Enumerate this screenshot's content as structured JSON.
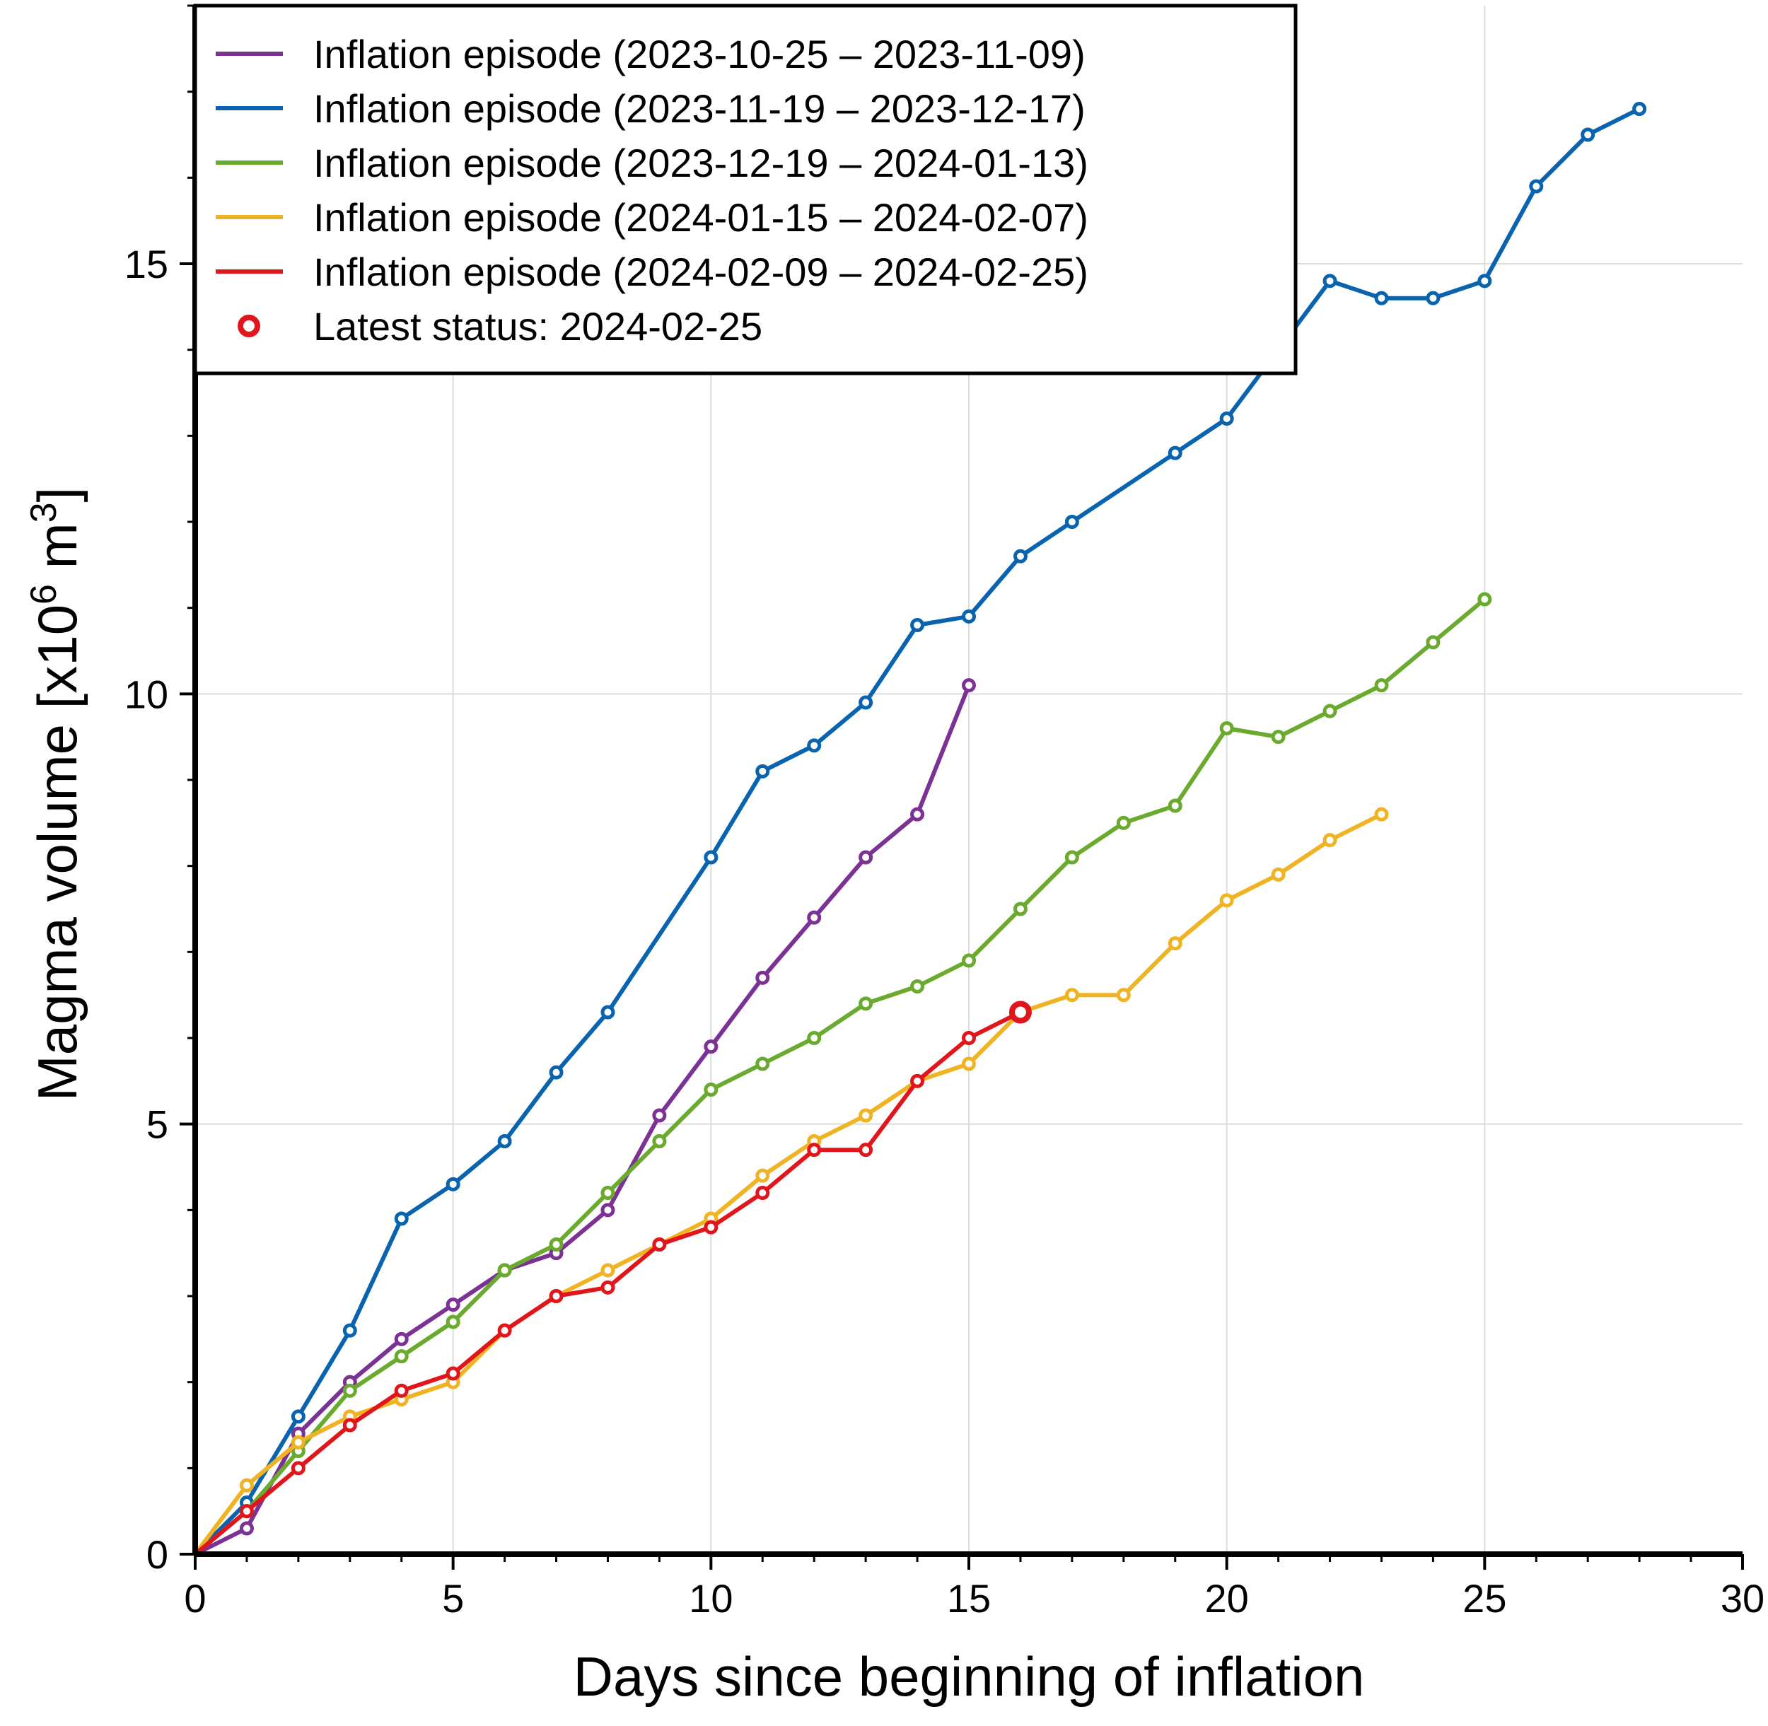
{
  "chart_data": {
    "type": "line",
    "title": "",
    "xlabel": "Days since beginning of inflation",
    "ylabel_main": "Magma volume [x10",
    "ylabel_sup1": "6",
    "ylabel_mid": " m",
    "ylabel_sup2": "3",
    "ylabel_end": "]",
    "xlim": [
      0,
      30
    ],
    "ylim": [
      0,
      18
    ],
    "xticks": [
      "0",
      "5",
      "10",
      "15",
      "20",
      "25",
      "30"
    ],
    "yticks": [
      "0",
      "5",
      "10",
      "15"
    ],
    "grid": true,
    "legend_position": "top-left",
    "series": [
      {
        "name": "Inflation episode (2023-10-25 – 2023-11-09)",
        "color": "#7b3294",
        "x": [
          0,
          1,
          2,
          3,
          4,
          5,
          6,
          7,
          8,
          9,
          10,
          11,
          12,
          13,
          14,
          15
        ],
        "y": [
          0,
          0.3,
          1.4,
          2.0,
          2.5,
          2.9,
          3.3,
          3.5,
          4.0,
          5.1,
          5.9,
          6.7,
          7.4,
          8.1,
          8.6,
          10.1
        ]
      },
      {
        "name": "Inflation episode (2023-11-19 – 2023-12-17)",
        "color": "#0a63ae",
        "x": [
          0,
          1,
          2,
          3,
          4,
          5,
          6,
          7,
          8,
          10,
          11,
          12,
          13,
          14,
          15,
          16,
          17,
          19,
          20,
          22,
          23,
          24,
          25,
          26,
          27,
          28
        ],
        "y": [
          0,
          0.6,
          1.6,
          2.6,
          3.9,
          4.3,
          4.8,
          5.6,
          6.3,
          8.1,
          9.1,
          9.4,
          9.9,
          10.8,
          10.9,
          11.6,
          12.0,
          12.8,
          13.2,
          14.8,
          14.6,
          14.6,
          14.8,
          15.9,
          16.5,
          16.8
        ]
      },
      {
        "name": "Inflation episode (2023-12-19 – 2024-01-13)",
        "color": "#6aaa2e",
        "x": [
          0,
          1,
          2,
          3,
          4,
          5,
          6,
          7,
          8,
          9,
          10,
          11,
          12,
          13,
          14,
          15,
          16,
          17,
          18,
          19,
          20,
          21,
          22,
          23,
          24,
          25
        ],
        "y": [
          0,
          0.5,
          1.2,
          1.9,
          2.3,
          2.7,
          3.3,
          3.6,
          4.2,
          4.8,
          5.4,
          5.7,
          6.0,
          6.4,
          6.6,
          6.9,
          7.5,
          8.1,
          8.5,
          8.7,
          9.6,
          9.5,
          9.8,
          10.1,
          10.6,
          11.1
        ]
      },
      {
        "name": "Inflation episode (2024-01-15 – 2024-02-07)",
        "color": "#f0b323",
        "x": [
          0,
          1,
          2,
          3,
          4,
          5,
          6,
          7,
          8,
          9,
          10,
          11,
          12,
          13,
          14,
          15,
          16,
          17,
          18,
          19,
          20,
          21,
          22,
          23
        ],
        "y": [
          0,
          0.8,
          1.3,
          1.6,
          1.8,
          2.0,
          2.6,
          3.0,
          3.3,
          3.6,
          3.9,
          4.4,
          4.8,
          5.1,
          5.5,
          5.7,
          6.3,
          6.5,
          6.5,
          7.1,
          7.6,
          7.9,
          8.3,
          8.6
        ]
      },
      {
        "name": "Inflation episode (2024-02-09 – 2024-02-25)",
        "color": "#e0161c",
        "x": [
          0,
          1,
          2,
          3,
          4,
          5,
          6,
          7,
          8,
          9,
          10,
          11,
          12,
          13,
          14,
          15,
          16
        ],
        "y": [
          0,
          0.5,
          1.0,
          1.5,
          1.9,
          2.1,
          2.6,
          3.0,
          3.1,
          3.6,
          3.8,
          4.2,
          4.7,
          4.7,
          5.5,
          6.0,
          6.3
        ]
      }
    ],
    "annotations": [
      {
        "name": "Latest status: 2024-02-25",
        "x": 16,
        "y": 6.3,
        "color": "#e0161c"
      }
    ]
  }
}
